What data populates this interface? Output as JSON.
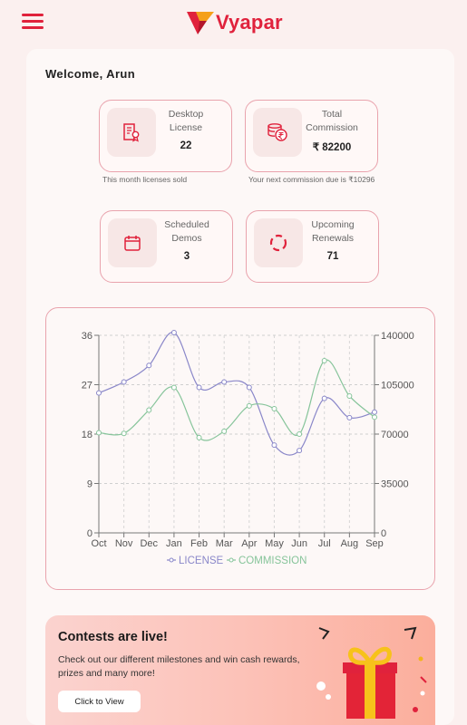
{
  "header": {
    "logo_text": "Vyapar",
    "brand_color": "#e0223c"
  },
  "welcome": "Welcome, Arun",
  "cards": [
    {
      "label1": "Desktop",
      "label2": "License",
      "value": "22",
      "subtitle": "This month licenses sold",
      "icon": "certificate-icon"
    },
    {
      "label1": "Total",
      "label2": "Commission",
      "value": "₹ 82200",
      "subtitle": "Your next commission due is ₹10296",
      "icon": "rupee-coins-icon"
    },
    {
      "label1": "Scheduled",
      "label2": "Demos",
      "value": "3",
      "icon": "calendar-icon"
    },
    {
      "label1": "Upcoming",
      "label2": "Renewals",
      "value": "71",
      "icon": "renewal-icon"
    }
  ],
  "chart_data": {
    "type": "line",
    "categories": [
      "Oct",
      "Nov",
      "Dec",
      "Jan",
      "Feb",
      "Mar",
      "Apr",
      "May",
      "Jun",
      "Jul",
      "Aug",
      "Sep"
    ],
    "series": [
      {
        "name": "LICENSE",
        "axis": "left",
        "color": "#8a87c9",
        "values": [
          25.5,
          27.5,
          30.5,
          36.5,
          26.5,
          27.5,
          26.5,
          16,
          15,
          24.5,
          21,
          22
        ]
      },
      {
        "name": "COMMISSION",
        "axis": "right",
        "color": "#86c49a",
        "values": [
          71000,
          70500,
          87000,
          103000,
          67500,
          72000,
          90000,
          88000,
          70000,
          122000,
          97000,
          82000
        ]
      }
    ],
    "left_axis": {
      "min": 0,
      "max": 36,
      "ticks": [
        "0",
        "9",
        "18",
        "27",
        "36"
      ]
    },
    "right_axis": {
      "min": 0,
      "max": 140000,
      "ticks": [
        "0",
        "35000",
        "70000",
        "105000",
        "140000"
      ]
    },
    "grid": true,
    "legend": "bottom"
  },
  "banner": {
    "title": "Contests are live!",
    "text": "Check out our different milestones and win cash rewards, prizes and many more!",
    "button": "Click to View"
  }
}
